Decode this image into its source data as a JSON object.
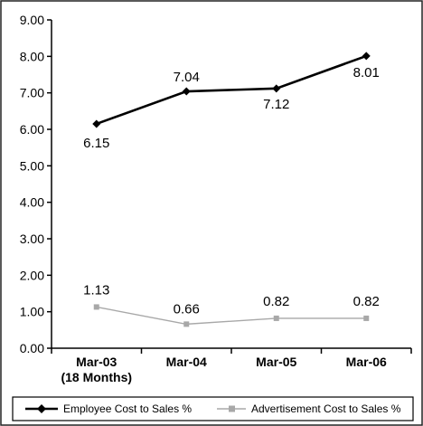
{
  "chart_data": {
    "type": "line",
    "title": "",
    "xlabel": "",
    "ylabel": "",
    "categories": [
      "Mar-03",
      "Mar-04",
      "Mar-05",
      "Mar-06"
    ],
    "category_sublabels": [
      "(18 Months)",
      "",
      "",
      ""
    ],
    "ylim": [
      0,
      9
    ],
    "y_ticks": [
      "0.00",
      "1.00",
      "2.00",
      "3.00",
      "4.00",
      "5.00",
      "6.00",
      "7.00",
      "8.00",
      "9.00"
    ],
    "grid": false,
    "legend_position": "bottom",
    "series": [
      {
        "name": "Employee Cost to Sales %",
        "values": [
          6.15,
          7.04,
          7.12,
          8.01
        ],
        "value_labels": [
          "6.15",
          "7.04",
          "7.12",
          "8.01"
        ],
        "color": "#000000",
        "marker": "diamond"
      },
      {
        "name": "Advertisement Cost to Sales %",
        "values": [
          1.13,
          0.66,
          0.82,
          0.82
        ],
        "value_labels": [
          "1.13",
          "0.66",
          "0.82",
          "0.82"
        ],
        "color": "#a8a8a8",
        "marker": "square"
      }
    ]
  }
}
